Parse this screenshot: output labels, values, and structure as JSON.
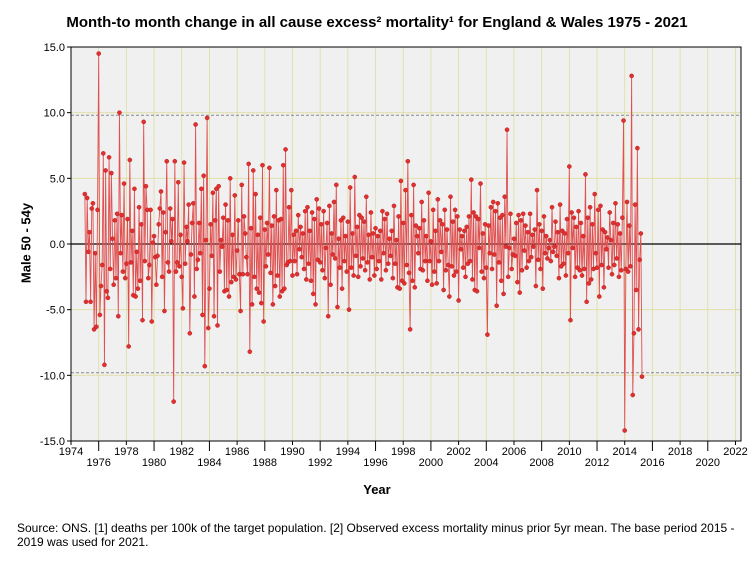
{
  "chart_data": {
    "type": "line",
    "title": "Month-to month change in all cause excess² mortality¹  for England & Wales 1975 - 2021",
    "xlabel": "Year",
    "ylabel": "Male 50 - 54y",
    "xlim": [
      1974,
      2022.4
    ],
    "ylim": [
      -15,
      15
    ],
    "x_ticks": [
      1974,
      1976,
      1978,
      1980,
      1982,
      1984,
      1986,
      1988,
      1990,
      1992,
      1994,
      1996,
      1998,
      2000,
      2002,
      2004,
      2006,
      2008,
      2010,
      2012,
      2014,
      2016,
      2018,
      2020,
      2022
    ],
    "y_ticks": [
      -15.0,
      -10.0,
      -5.0,
      0.0,
      5.0,
      10.0,
      15.0
    ],
    "reference_lines": [
      9.8,
      -9.8,
      0
    ],
    "grid": true,
    "x_start": 1975.0,
    "x_step": 0.08333,
    "values": [
      3.8,
      -4.4,
      3.5,
      -0.6,
      0.9,
      -4.4,
      2.7,
      3.1,
      -6.5,
      -0.7,
      -6.3,
      2.6,
      14.5,
      -5.4,
      -3.2,
      -1.6,
      6.9,
      -9.2,
      5.6,
      -3.6,
      -4.1,
      6.6,
      -1.9,
      5.4,
      0.4,
      -3.1,
      1.8,
      -2.6,
      2.3,
      -5.5,
      10.0,
      -0.7,
      2.2,
      -2.1,
      4.6,
      -2.6,
      -1.5,
      1.9,
      -7.8,
      6.4,
      -1.4,
      1.0,
      -3.9,
      4.2,
      -4.0,
      -0.6,
      -3.4,
      2.8,
      -2.8,
      1.5,
      -5.8,
      9.3,
      -1.3,
      4.4,
      2.6,
      -2.6,
      -1.6,
      2.6,
      -5.9,
      0.1,
      0.6,
      -1.0,
      -3.1,
      -0.9,
      1.5,
      2.7,
      4.0,
      -2.5,
      2.4,
      -5.1,
      0.9,
      6.3,
      -1.4,
      -2.1,
      2.7,
      0.2,
      1.9,
      -12.0,
      6.3,
      -2.1,
      -1.4,
      4.7,
      -1.7,
      0.7,
      -2.5,
      -4.9,
      6.2,
      -1.5,
      1.3,
      0.2,
      3.0,
      -6.8,
      -0.8,
      1.6,
      3.1,
      -4.0,
      9.1,
      -1.9,
      -1.2,
      1.6,
      -0.7,
      4.2,
      -5.4,
      5.2,
      -9.3,
      0.3,
      9.6,
      -6.4,
      -3.4,
      1.5,
      -0.9,
      3.9,
      -5.5,
      1.8,
      4.2,
      -6.2,
      4.4,
      -2.1,
      0.3,
      -0.2,
      2.0,
      -3.6,
      3.0,
      -3.5,
      1.8,
      -4.0,
      5.0,
      -2.9,
      0.7,
      -2.5,
      3.7,
      -2.7,
      -0.5,
      1.8,
      -2.3,
      -5.1,
      4.5,
      -2.3,
      2.1,
      0.8,
      -1.0,
      -2.3,
      6.1,
      -8.2,
      1.2,
      -4.6,
      5.6,
      -2.5,
      3.8,
      -3.4,
      0.7,
      -3.7,
      2.0,
      -4.5,
      6.0,
      -5.9,
      1.1,
      -1.7,
      1.6,
      -0.8,
      5.8,
      -2.2,
      1.4,
      -4.6,
      2.1,
      -3.2,
      4.1,
      -2.4,
      1.8,
      -4.0,
      1.9,
      -3.6,
      6.0,
      -3.4,
      7.2,
      -1.6,
      -1.4,
      2.8,
      -1.3,
      4.1,
      -2.4,
      0.7,
      -1.3,
      1.0,
      -2.3,
      2.2,
      -0.4,
      1.3,
      -1.0,
      0.8,
      -1.9,
      2.5,
      -2.7,
      2.8,
      -1.5,
      1.0,
      -2.8,
      2.4,
      -3.8,
      1.9,
      -4.6,
      3.4,
      -1.2,
      2.7,
      -1.4,
      1.5,
      -2.0,
      2.5,
      -2.6,
      -0.3,
      1.6,
      -5.5,
      2.9,
      -3.1,
      0.8,
      -0.8,
      3.2,
      -1.1,
      4.5,
      -4.8,
      0.4,
      -1.8,
      1.8,
      -3.4,
      2.0,
      -1.3,
      0.6,
      -2.1,
      1.7,
      -5.0,
      4.3,
      -1.8,
      0.8,
      -2.4,
      5.1,
      -0.9,
      1.3,
      -2.5,
      2.2,
      -1.7,
      2.0,
      -1.1,
      1.7,
      -2.0,
      3.6,
      -1.4,
      0.7,
      -2.7,
      2.4,
      -1.0,
      0.8,
      -2.4,
      1.2,
      -1.9,
      0.6,
      -1.3,
      1.0,
      -2.7,
      2.5,
      -0.7,
      1.9,
      -2.0,
      2.3,
      -1.5,
      0.4,
      -0.9,
      1.0,
      -2.6,
      2.9,
      -1.5,
      0.3,
      -3.3,
      2.1,
      -3.4,
      4.8,
      -2.8,
      1.6,
      -3.0,
      4.1,
      -1.6,
      6.3,
      -2.2,
      -6.5,
      2.2,
      -2.8,
      4.5,
      -3.3,
      1.4,
      0.6,
      -0.7,
      1.2,
      -1.9,
      3.2,
      -2.0,
      1.8,
      -1.3,
      0.6,
      -2.8,
      3.9,
      -1.3,
      0.2,
      -3.1,
      2.6,
      -2.1,
      1.0,
      -3.0,
      3.4,
      -1.3,
      1.8,
      -0.6,
      1.5,
      -3.5,
      2.6,
      -2.0,
      1.1,
      -1.6,
      -4.0,
      3.6,
      -1.7,
      1.7,
      -2.4,
      2.6,
      -2.1,
      2.1,
      -4.3,
      1.1,
      -0.4,
      0.6,
      -1.8,
      1.0,
      -2.5,
      1.3,
      -1.5,
      2.1,
      -1.3,
      4.9,
      -2.7,
      2.4,
      -3.5,
      2.1,
      -3.6,
      1.9,
      -0.3,
      4.6,
      -2.1,
      0.8,
      -2.6,
      1.5,
      -1.8,
      -6.9,
      1.4,
      -0.7,
      2.8,
      -1.9,
      3.2,
      -0.8,
      2.5,
      -4.7,
      3.1,
      -1.4,
      2.0,
      -2.8,
      2.2,
      -3.8,
      3.6,
      -0.2,
      8.7,
      -2.5,
      -0.3,
      2.3,
      -1.9,
      -0.8,
      0.4,
      -0.9,
      1.6,
      -2.9,
      2.2,
      -3.7,
      1.8,
      -2.0,
      2.3,
      -0.5,
      1.4,
      -1.8,
      0.9,
      -1.3,
      2.3,
      -1.0,
      0.7,
      -0.2,
      1.1,
      -3.2,
      4.1,
      -1.2,
      1.5,
      -1.9,
      1.0,
      -3.4,
      2.1,
      -0.7,
      0.6,
      -1.1,
      -0.3,
      0.3,
      -1.3,
      2.8,
      -0.6,
      -0.2,
      1.7,
      -0.9,
      0.9,
      -2.6,
      3.0,
      -1.7,
      1.0,
      -1.5,
      0.8,
      -2.4,
      1.9,
      -0.7,
      5.9,
      -5.8,
      2.4,
      -0.3,
      2.0,
      -2.5,
      1.3,
      -1.8,
      2.5,
      -2.0,
      1.6,
      -2.4,
      0.6,
      -1.9,
      5.3,
      -4.4,
      2.0,
      -3.0,
      2.8,
      -2.7,
      1.5,
      -1.9,
      3.8,
      -0.7,
      -1.8,
      2.6,
      -4.0,
      2.9,
      -1.6,
      1.1,
      -3.3,
      0.9,
      -0.4,
      0.5,
      -1.8,
      2.4,
      0.3,
      -2.3,
      1.6,
      -1.6,
      3.1,
      -1.1,
      1.5,
      -2.5,
      0.8,
      -2.0,
      2.0,
      9.4,
      -14.2,
      -1.9,
      3.2,
      -2.1,
      1.4,
      -1.7,
      12.8,
      -11.5,
      -6.8,
      3.0,
      -3.5,
      7.3,
      -6.5,
      -1.2,
      0.8,
      -10.1
    ]
  }
}
